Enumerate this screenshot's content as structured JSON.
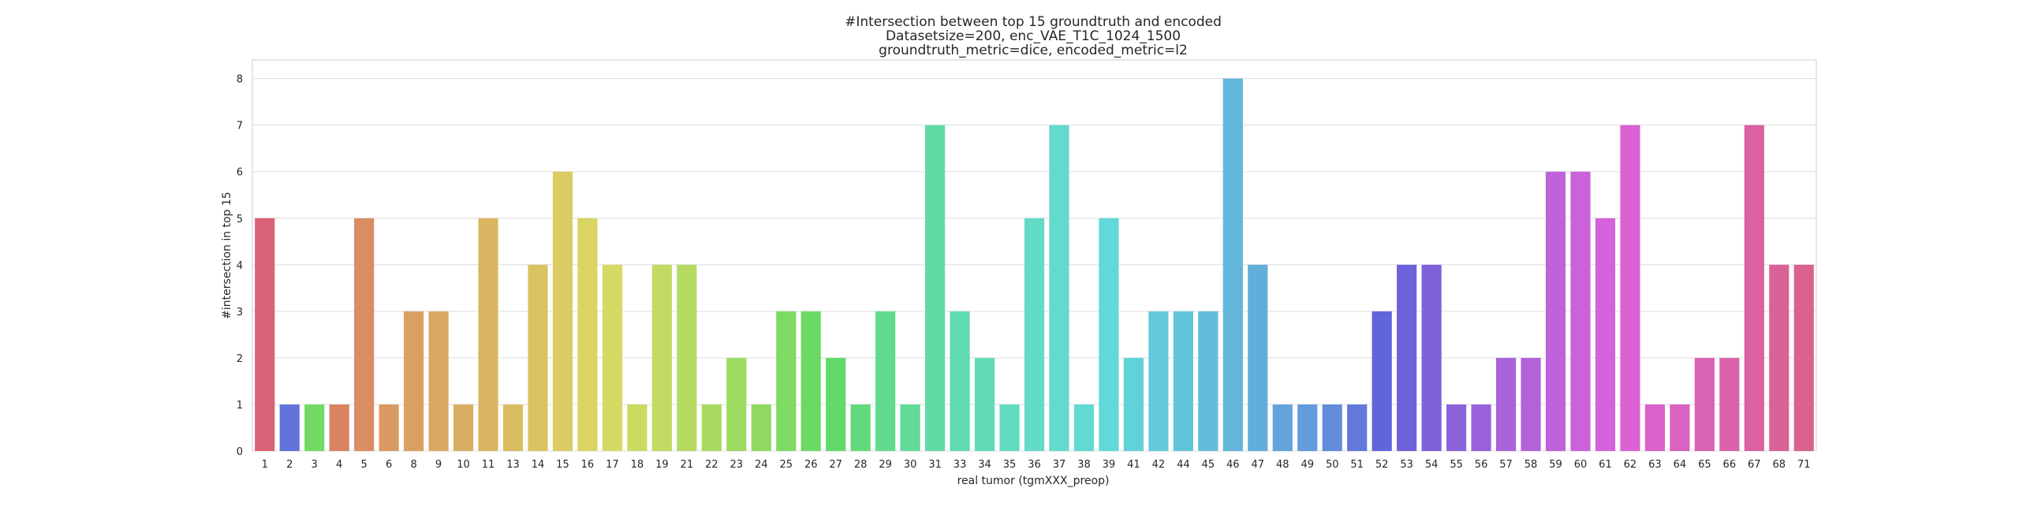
{
  "chart_data": {
    "type": "bar",
    "title": [
      "#Intersection between top 15 groundtruth and encoded",
      "Datasetsize=200, enc_VAE_T1C_1024_1500",
      "groundtruth_metric=dice, encoded_metric=l2"
    ],
    "xlabel": "real tumor (tgmXXX_preop)",
    "ylabel": "#intersection in top 15",
    "ylim": [
      0,
      8.4
    ],
    "yticks": [
      0,
      1,
      2,
      3,
      4,
      5,
      6,
      7,
      8
    ],
    "grid": true,
    "legend": "none",
    "categories": [
      "1",
      "2",
      "3",
      "4",
      "5",
      "6",
      "8",
      "9",
      "10",
      "11",
      "13",
      "14",
      "15",
      "16",
      "17",
      "18",
      "19",
      "21",
      "22",
      "23",
      "24",
      "25",
      "26",
      "27",
      "28",
      "29",
      "30",
      "31",
      "33",
      "34",
      "35",
      "36",
      "37",
      "38",
      "39",
      "41",
      "42",
      "44",
      "45",
      "46",
      "47",
      "48",
      "49",
      "50",
      "51",
      "52",
      "53",
      "54",
      "55",
      "56",
      "57",
      "58",
      "59",
      "60",
      "61",
      "62",
      "63",
      "64",
      "65",
      "66",
      "67",
      "68",
      "71"
    ],
    "values": [
      5,
      1,
      1,
      1,
      5,
      1,
      3,
      3,
      1,
      5,
      1,
      4,
      6,
      5,
      4,
      1,
      4,
      4,
      1,
      2,
      1,
      3,
      3,
      2,
      1,
      3,
      1,
      7,
      3,
      2,
      1,
      5,
      7,
      1,
      5,
      2,
      3,
      3,
      3,
      8,
      4,
      1,
      1,
      1,
      1,
      3,
      4,
      4,
      1,
      1,
      2,
      2,
      6,
      6,
      5,
      7,
      1,
      1,
      2,
      2,
      7,
      4,
      4
    ]
  }
}
